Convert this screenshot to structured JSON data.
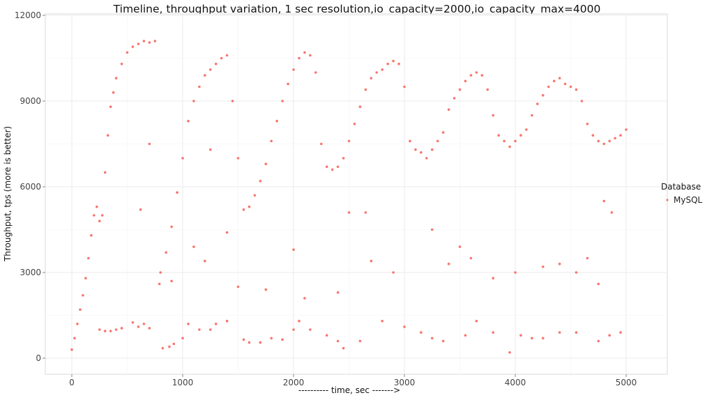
{
  "chart_data": {
    "type": "scatter",
    "title": "Timeline, throughput variation, 1 sec resolution,io_capacity=2000,io_capacity_max=4000",
    "xlabel": "---------- time, sec ------->",
    "ylabel": "Throughput, tps (more is better)",
    "xlim": [
      -250,
      5250
    ],
    "ylim": [
      -600,
      12000
    ],
    "xticks": [
      0,
      1000,
      2000,
      3000,
      4000,
      5000
    ],
    "yticks": [
      0,
      3000,
      6000,
      9000,
      12000
    ],
    "xtick_labels": [
      "0",
      "1000",
      "2000",
      "3000",
      "4000",
      "5000"
    ],
    "ytick_labels": [
      "0",
      "3000",
      "6000",
      "9000",
      "12000"
    ],
    "grid": true,
    "legend": {
      "title": "Database",
      "placement": "right",
      "entries": [
        "MySQL"
      ]
    },
    "colors": {
      "MySQL": "#F8766D"
    },
    "series": [
      {
        "name": "MySQL",
        "points": [
          [
            0,
            300
          ],
          [
            25,
            700
          ],
          [
            50,
            1200
          ],
          [
            75,
            1700
          ],
          [
            100,
            2200
          ],
          [
            125,
            2800
          ],
          [
            150,
            3500
          ],
          [
            175,
            4300
          ],
          [
            200,
            5000
          ],
          [
            225,
            5300
          ],
          [
            250,
            4800
          ],
          [
            275,
            5000
          ],
          [
            300,
            6500
          ],
          [
            325,
            7800
          ],
          [
            350,
            8800
          ],
          [
            375,
            9300
          ],
          [
            400,
            9800
          ],
          [
            450,
            10300
          ],
          [
            500,
            10700
          ],
          [
            550,
            10900
          ],
          [
            600,
            11000
          ],
          [
            650,
            11100
          ],
          [
            700,
            11050
          ],
          [
            750,
            11100
          ],
          [
            790,
            2600
          ],
          [
            800,
            3000
          ],
          [
            850,
            3700
          ],
          [
            900,
            4600
          ],
          [
            950,
            5800
          ],
          [
            1000,
            7000
          ],
          [
            1050,
            8300
          ],
          [
            1100,
            9000
          ],
          [
            1150,
            9500
          ],
          [
            1200,
            9900
          ],
          [
            1250,
            10100
          ],
          [
            1300,
            10300
          ],
          [
            1350,
            10500
          ],
          [
            1400,
            10600
          ],
          [
            1450,
            9000
          ],
          [
            1500,
            7000
          ],
          [
            1550,
            5200
          ],
          [
            1600,
            5300
          ],
          [
            1650,
            5700
          ],
          [
            1700,
            6200
          ],
          [
            1750,
            6800
          ],
          [
            1800,
            7600
          ],
          [
            1850,
            8300
          ],
          [
            1900,
            9000
          ],
          [
            1950,
            9600
          ],
          [
            2000,
            10100
          ],
          [
            2050,
            10500
          ],
          [
            2100,
            10700
          ],
          [
            2150,
            10600
          ],
          [
            2200,
            10000
          ],
          [
            2250,
            7500
          ],
          [
            2300,
            6700
          ],
          [
            2350,
            6600
          ],
          [
            2400,
            6700
          ],
          [
            2450,
            7000
          ],
          [
            2500,
            7600
          ],
          [
            2550,
            8200
          ],
          [
            2600,
            8800
          ],
          [
            2650,
            9400
          ],
          [
            2700,
            9800
          ],
          [
            2750,
            10000
          ],
          [
            2800,
            10100
          ],
          [
            2850,
            10300
          ],
          [
            2900,
            10400
          ],
          [
            2950,
            10300
          ],
          [
            3000,
            9500
          ],
          [
            3050,
            7600
          ],
          [
            3100,
            7300
          ],
          [
            3150,
            7200
          ],
          [
            3200,
            7000
          ],
          [
            3250,
            7300
          ],
          [
            3300,
            7600
          ],
          [
            3350,
            7900
          ],
          [
            3400,
            8700
          ],
          [
            3450,
            9100
          ],
          [
            3500,
            9400
          ],
          [
            3550,
            9700
          ],
          [
            3600,
            9900
          ],
          [
            3650,
            10000
          ],
          [
            3700,
            9900
          ],
          [
            3750,
            9400
          ],
          [
            3800,
            8500
          ],
          [
            3850,
            7800
          ],
          [
            3900,
            7600
          ],
          [
            3950,
            7400
          ],
          [
            4000,
            7600
          ],
          [
            4050,
            7800
          ],
          [
            4100,
            8000
          ],
          [
            4150,
            8500
          ],
          [
            4200,
            8900
          ],
          [
            4250,
            9200
          ],
          [
            4300,
            9500
          ],
          [
            4350,
            9700
          ],
          [
            4400,
            9800
          ],
          [
            4450,
            9600
          ],
          [
            4500,
            9500
          ],
          [
            4550,
            9400
          ],
          [
            4600,
            9000
          ],
          [
            4650,
            8200
          ],
          [
            4700,
            7800
          ],
          [
            4750,
            7600
          ],
          [
            4800,
            7500
          ],
          [
            4850,
            7600
          ],
          [
            4900,
            7700
          ],
          [
            4950,
            7800
          ],
          [
            5000,
            8000
          ],
          [
            250,
            1000
          ],
          [
            300,
            950
          ],
          [
            350,
            950
          ],
          [
            400,
            1000
          ],
          [
            450,
            1050
          ],
          [
            550,
            1250
          ],
          [
            600,
            1100
          ],
          [
            650,
            1200
          ],
          [
            700,
            1050
          ],
          [
            820,
            350
          ],
          [
            880,
            400
          ],
          [
            920,
            500
          ],
          [
            1000,
            700
          ],
          [
            1050,
            1200
          ],
          [
            1150,
            1000
          ],
          [
            1250,
            1000
          ],
          [
            1300,
            1200
          ],
          [
            1400,
            1300
          ],
          [
            1550,
            650
          ],
          [
            1600,
            550
          ],
          [
            1700,
            550
          ],
          [
            1800,
            700
          ],
          [
            1900,
            650
          ],
          [
            2000,
            1000
          ],
          [
            2050,
            1300
          ],
          [
            2150,
            1000
          ],
          [
            2300,
            800
          ],
          [
            2400,
            600
          ],
          [
            2450,
            350
          ],
          [
            2600,
            600
          ],
          [
            2800,
            1300
          ],
          [
            3000,
            1100
          ],
          [
            3150,
            900
          ],
          [
            3250,
            700
          ],
          [
            3350,
            600
          ],
          [
            3550,
            800
          ],
          [
            3650,
            1300
          ],
          [
            3800,
            900
          ],
          [
            3950,
            200
          ],
          [
            4050,
            800
          ],
          [
            4150,
            700
          ],
          [
            4250,
            700
          ],
          [
            4400,
            900
          ],
          [
            4550,
            900
          ],
          [
            4750,
            600
          ],
          [
            4850,
            800
          ],
          [
            4950,
            900
          ],
          [
            620,
            5200
          ],
          [
            700,
            7500
          ],
          [
            900,
            2700
          ],
          [
            1100,
            3900
          ],
          [
            1200,
            3400
          ],
          [
            1250,
            7300
          ],
          [
            1400,
            4400
          ],
          [
            1500,
            2500
          ],
          [
            1750,
            2400
          ],
          [
            2000,
            3800
          ],
          [
            2100,
            2100
          ],
          [
            2400,
            2300
          ],
          [
            2500,
            5100
          ],
          [
            2650,
            5100
          ],
          [
            2700,
            3400
          ],
          [
            2900,
            3000
          ],
          [
            3250,
            4500
          ],
          [
            3400,
            3300
          ],
          [
            3500,
            3900
          ],
          [
            3600,
            3500
          ],
          [
            3800,
            2800
          ],
          [
            4000,
            3000
          ],
          [
            4250,
            3200
          ],
          [
            4400,
            3300
          ],
          [
            4550,
            3000
          ],
          [
            4650,
            3500
          ],
          [
            4750,
            2600
          ],
          [
            4800,
            5500
          ],
          [
            4870,
            5100
          ]
        ]
      }
    ]
  }
}
